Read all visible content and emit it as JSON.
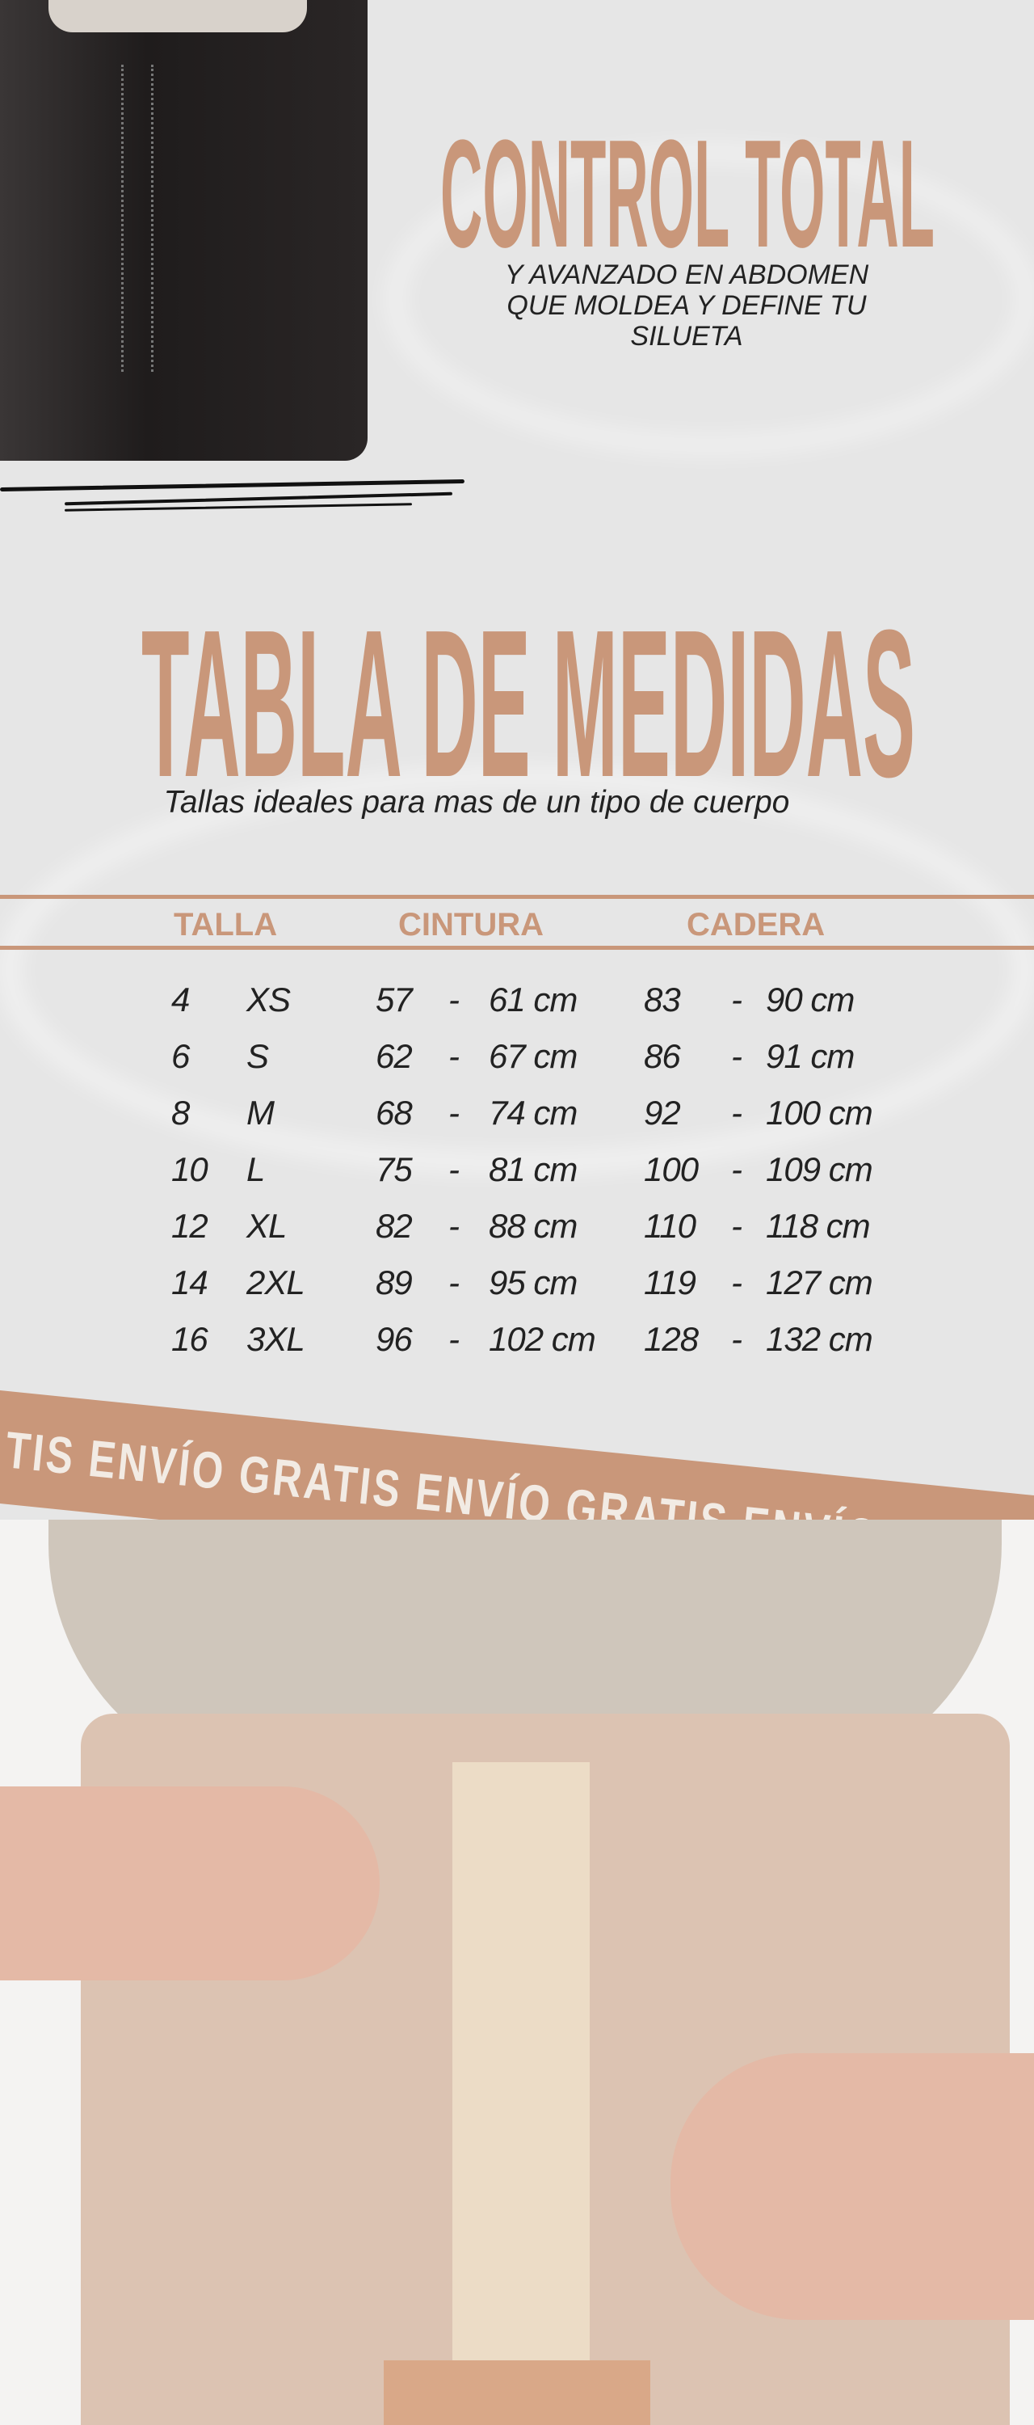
{
  "hero": {
    "title": "CONTROL TOTAL",
    "subtitle_lines": [
      "Y AVANZADO EN ABDOMEN",
      "QUE MOLDEA Y DEFINE TU",
      "SILUETA"
    ]
  },
  "size_chart": {
    "title": "TABLA DE MEDIDAS",
    "subtitle": "Tallas ideales para mas de un tipo de cuerpo",
    "headers": [
      "TALLA",
      "CINTURA",
      "CADERA"
    ],
    "rows": [
      {
        "num": "4",
        "size": "XS",
        "waist_min": "57",
        "waist_max": "61 cm",
        "hip_min": "83",
        "hip_max": "90 cm"
      },
      {
        "num": "6",
        "size": "S",
        "waist_min": "62",
        "waist_max": "67 cm",
        "hip_min": "86",
        "hip_max": "91 cm"
      },
      {
        "num": "8",
        "size": "M",
        "waist_min": "68",
        "waist_max": "74 cm",
        "hip_min": "92",
        "hip_max": "100 cm"
      },
      {
        "num": "10",
        "size": "L",
        "waist_min": "75",
        "waist_max": "81 cm",
        "hip_min": "100",
        "hip_max": "109 cm"
      },
      {
        "num": "12",
        "size": "XL",
        "waist_min": "82",
        "waist_max": "88 cm",
        "hip_min": "110",
        "hip_max": "118 cm"
      },
      {
        "num": "14",
        "size": "2XL",
        "waist_min": "89",
        "waist_max": "95 cm",
        "hip_min": "119",
        "hip_max": "127 cm"
      },
      {
        "num": "16",
        "size": "3XL",
        "waist_min": "96",
        "waist_max": "102 cm",
        "hip_min": "128",
        "hip_max": "132 cm"
      }
    ],
    "separator": "-"
  },
  "banner": {
    "text": "TIS ENVÍO GRATIS ENVÍO GRATIS ENVÍO GRATI"
  },
  "colors": {
    "accent": "#c9977a",
    "background": "#e6e6e6",
    "text": "#222222"
  }
}
